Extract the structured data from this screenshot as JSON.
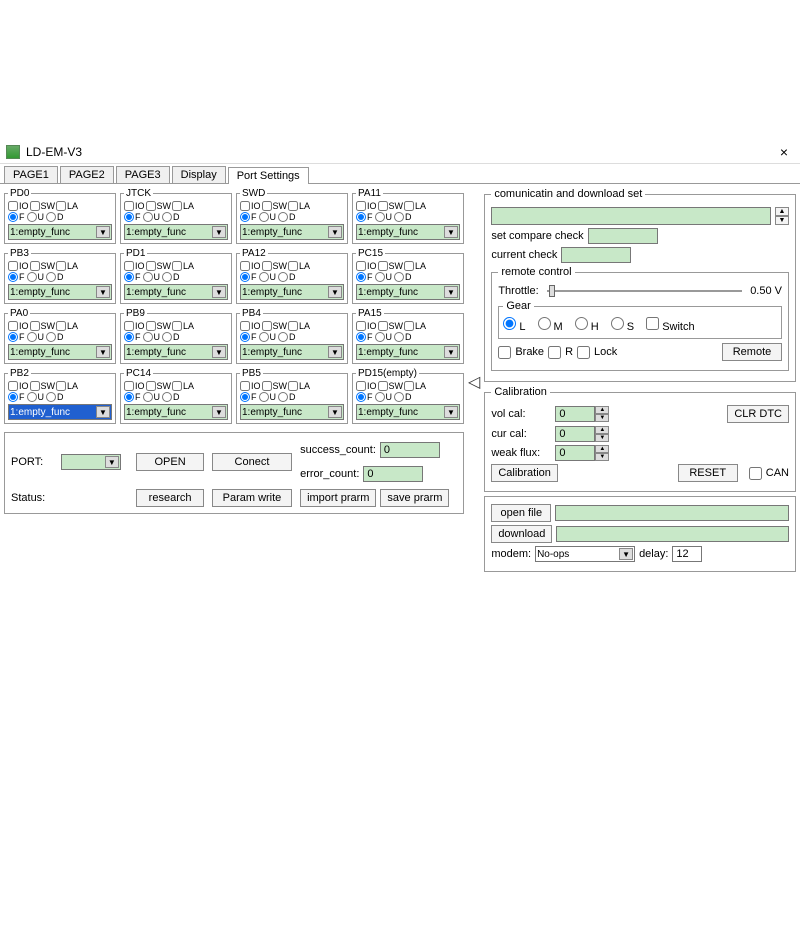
{
  "window": {
    "title": "LD-EM-V3",
    "close": "×"
  },
  "tabs": [
    "PAGE1",
    "PAGE2",
    "PAGE3",
    "Display",
    "Port Settings"
  ],
  "active_tab": 4,
  "port_cells": [
    {
      "title": "PD0",
      "sel": false
    },
    {
      "title": "JTCK",
      "sel": false
    },
    {
      "title": "SWD",
      "sel": false
    },
    {
      "title": "PA11",
      "sel": false
    },
    {
      "title": "PB3",
      "sel": false
    },
    {
      "title": "PD1",
      "sel": false
    },
    {
      "title": "PA12",
      "sel": false
    },
    {
      "title": "PC15",
      "sel": false
    },
    {
      "title": "PA0",
      "sel": false
    },
    {
      "title": "PB9",
      "sel": false
    },
    {
      "title": "PB4",
      "sel": false
    },
    {
      "title": "PA15",
      "sel": false
    },
    {
      "title": "PB2",
      "sel": true
    },
    {
      "title": "PC14",
      "sel": false
    },
    {
      "title": "PB5",
      "sel": false
    },
    {
      "title": "PD15(empty)",
      "sel": false
    }
  ],
  "chk_labels": [
    "IO",
    "SW",
    "LA"
  ],
  "rad_labels": [
    "F",
    "U",
    "D"
  ],
  "dd_value": "1:empty_func",
  "bottom": {
    "port_label": "PORT:",
    "open": "OPEN",
    "conect": "Conect",
    "success_label": "success_count:",
    "success_val": "0",
    "error_label": "error_count:",
    "error_val": "0",
    "status_label": "Status:",
    "research": "research",
    "param_write": "Param write",
    "import": "import prarm",
    "save": "save prarm"
  },
  "comm": {
    "legend": "comunicatin and download set",
    "compare": "set compare check",
    "current": "current check",
    "remote_legend": "remote control",
    "throttle": "Throttle:",
    "throttle_val": "0.50 V",
    "gear_legend": "Gear",
    "gears": [
      "L",
      "M",
      "H",
      "S"
    ],
    "switch": "Switch",
    "brake": "Brake",
    "r": "R",
    "lock": "Lock",
    "remote_btn": "Remote"
  },
  "cal": {
    "legend": "Calibration",
    "vol": "vol cal:",
    "cur": "cur cal:",
    "weak": "weak flux:",
    "vol_val": "0",
    "cur_val": "0",
    "weak_val": "0",
    "clr": "CLR DTC",
    "calib_btn": "Calibration",
    "reset": "RESET",
    "can": "CAN"
  },
  "dl": {
    "open": "open file",
    "download": "download",
    "modem_label": "modem:",
    "modem_val": "No-ops",
    "delay_label": "delay:",
    "delay_val": "12"
  },
  "colors": {
    "field_bg": "#c8e8c8",
    "sel_bg": "#2060d0"
  }
}
